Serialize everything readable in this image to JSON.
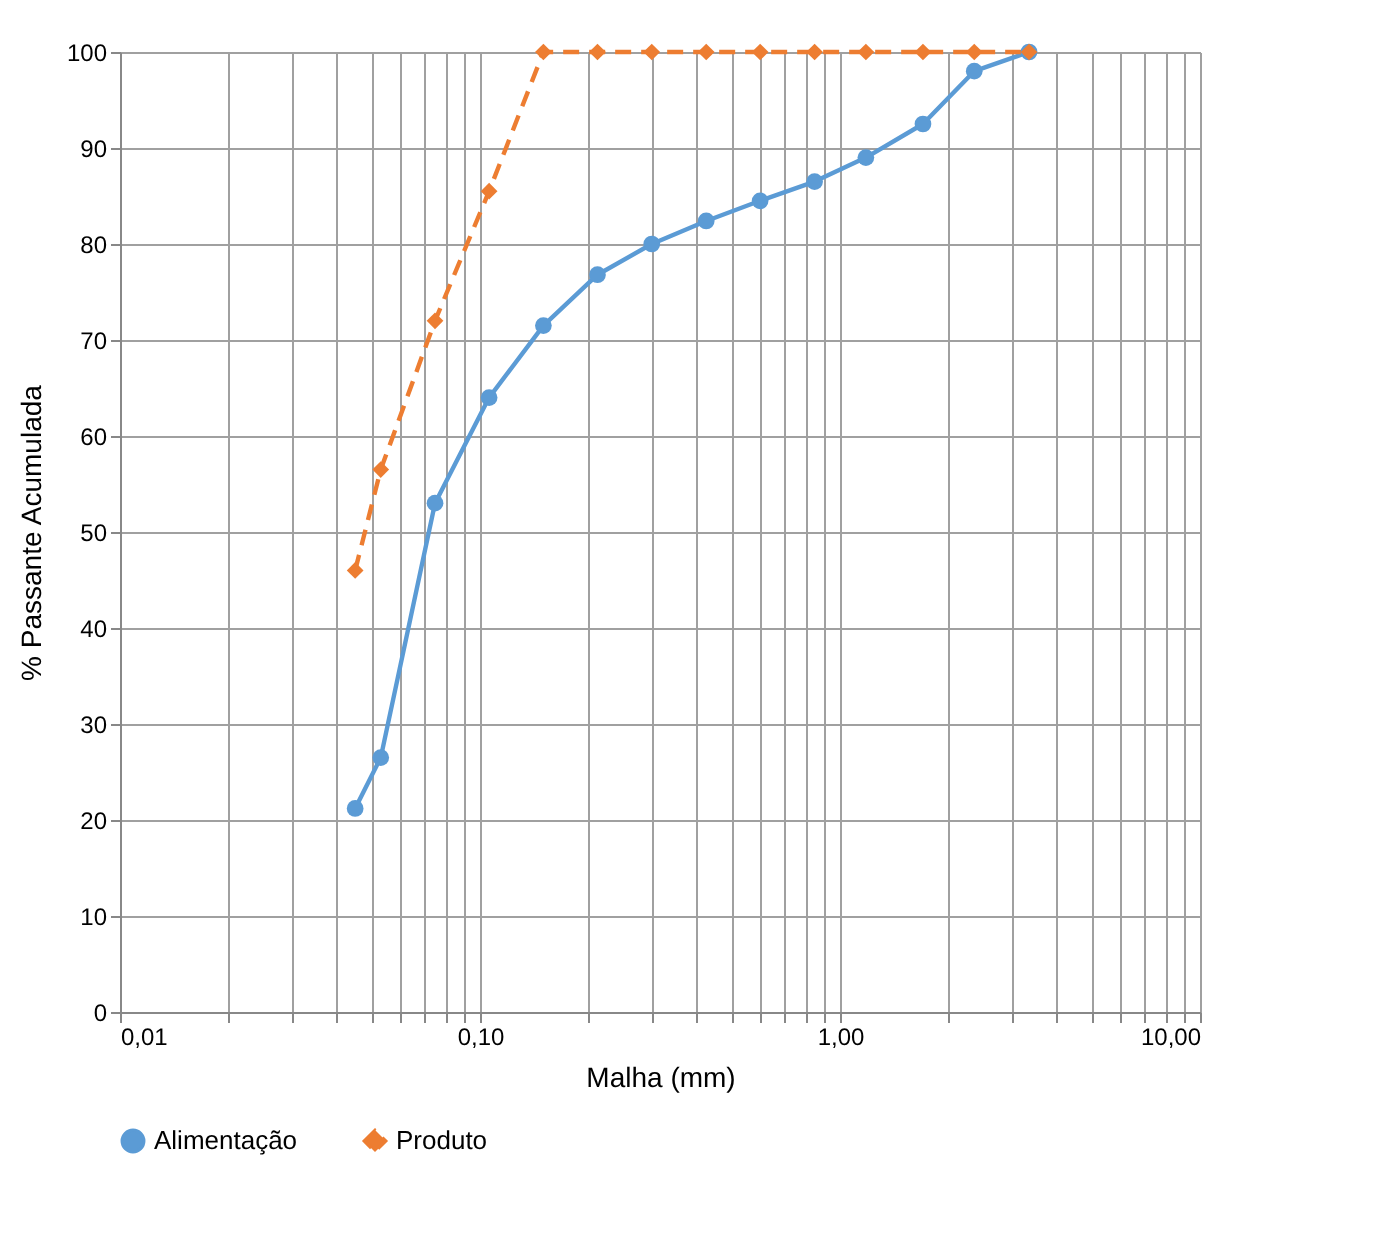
{
  "chart_data": {
    "type": "line",
    "xlabel": "Malha (mm)",
    "ylabel": "% Passante Acumulada",
    "x": [
      0.045,
      0.053,
      0.075,
      0.106,
      0.15,
      0.212,
      0.3,
      0.425,
      0.6,
      0.85,
      1.18,
      1.7,
      2.36,
      3.35
    ],
    "series": [
      {
        "name": "Alimentação",
        "color": "#5b9bd5",
        "marker": "circle",
        "line_style": "solid",
        "values": [
          21.2,
          26.5,
          53,
          64,
          71.5,
          76.8,
          80,
          82.4,
          84.5,
          86.5,
          89,
          92.5,
          98,
          100
        ]
      },
      {
        "name": "Produto",
        "color": "#ed7d31",
        "marker": "diamond",
        "line_style": "dashed",
        "values": [
          46,
          56.5,
          72,
          85.5,
          100,
          100,
          100,
          100,
          100,
          100,
          100,
          100,
          100,
          100
        ]
      }
    ],
    "log": "x",
    "xlim": [
      0.01,
      10
    ],
    "ylim": [
      0,
      100
    ],
    "xticks": [
      {
        "value": 0.01,
        "label": "0,01"
      },
      {
        "value": 0.02,
        "label": null
      },
      {
        "value": 0.03,
        "label": null
      },
      {
        "value": 0.04,
        "label": null
      },
      {
        "value": 0.05,
        "label": null
      },
      {
        "value": 0.06,
        "label": null
      },
      {
        "value": 0.07,
        "label": null
      },
      {
        "value": 0.08,
        "label": null
      },
      {
        "value": 0.09,
        "label": null
      },
      {
        "value": 0.1,
        "label": "0,10"
      },
      {
        "value": 0.2,
        "label": null
      },
      {
        "value": 0.3,
        "label": null
      },
      {
        "value": 0.4,
        "label": null
      },
      {
        "value": 0.5,
        "label": null
      },
      {
        "value": 0.6,
        "label": null
      },
      {
        "value": 0.7,
        "label": null
      },
      {
        "value": 0.8,
        "label": null
      },
      {
        "value": 0.9,
        "label": null
      },
      {
        "value": 1,
        "label": "1,00"
      },
      {
        "value": 2,
        "label": null
      },
      {
        "value": 3,
        "label": null
      },
      {
        "value": 4,
        "label": null
      },
      {
        "value": 5,
        "label": null
      },
      {
        "value": 6,
        "label": null
      },
      {
        "value": 7,
        "label": null
      },
      {
        "value": 8,
        "label": null
      },
      {
        "value": 9,
        "label": null
      },
      {
        "value": 10,
        "label": "10,00"
      }
    ],
    "yticks": [
      0,
      10,
      20,
      30,
      40,
      50,
      60,
      70,
      80,
      90,
      100
    ],
    "grid": true,
    "legend": "bottom"
  }
}
